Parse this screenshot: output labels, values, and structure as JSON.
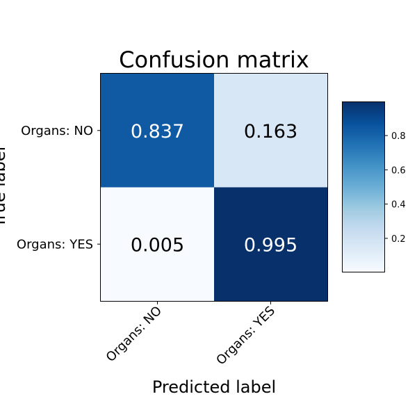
{
  "chart_data": {
    "type": "heatmap",
    "title": "Confusion matrix",
    "xlabel": "Predicted label",
    "ylabel": "True label",
    "row_labels": [
      "Organs: NO",
      "Organs: YES"
    ],
    "col_labels": [
      "Organs: NO",
      "Organs: YES"
    ],
    "values": [
      [
        0.837,
        0.163
      ],
      [
        0.005,
        0.995
      ]
    ],
    "cell_text": [
      [
        "0.837",
        "0.163"
      ],
      [
        "0.005",
        "0.995"
      ]
    ],
    "colormap": "Blues",
    "colorbar": {
      "ticks": [
        0.2,
        0.4,
        0.6,
        0.8
      ],
      "tick_labels": [
        "0.2",
        "0.4",
        "0.6",
        "0.8"
      ],
      "range": [
        0.005,
        0.995
      ]
    }
  }
}
